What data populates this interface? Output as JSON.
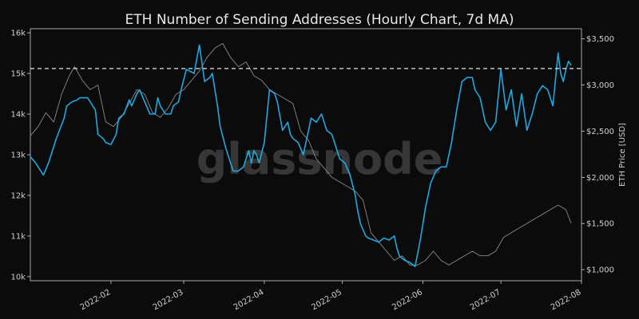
{
  "chart_data": {
    "type": "line",
    "title": "ETH Number of Sending Addresses (Hourly Chart, 7d MA)",
    "watermark": "glassnode",
    "xlabel": "",
    "ylabel": "",
    "y2label": "ETH Price [USD]",
    "x_ticks": [
      "2022-02",
      "2022-03",
      "2022-04",
      "2022-05",
      "2022-06",
      "2022-07",
      "2022-08"
    ],
    "x_tick_days": [
      31,
      59,
      90,
      120,
      151,
      181,
      212
    ],
    "xlim_days": [
      0,
      212
    ],
    "y_ticks": [
      "10k",
      "11k",
      "12k",
      "13k",
      "14k",
      "15k",
      "16k"
    ],
    "y_tick_values": [
      10000,
      11000,
      12000,
      13000,
      14000,
      15000,
      16000
    ],
    "ylim": [
      9900,
      16100
    ],
    "y2_ticks": [
      "$1,000",
      "$1,500",
      "$2,000",
      "$2,500",
      "$3,000",
      "$3,500"
    ],
    "y2_tick_values": [
      1000,
      1500,
      2000,
      2500,
      3000,
      3500
    ],
    "y2lim": [
      880,
      3610
    ],
    "reference_line": 15120,
    "colors": {
      "addresses": "#1fa8e0",
      "price": "#8a8a8a",
      "reference": "#ffffff"
    },
    "series": [
      {
        "axis": "left",
        "days": [
          0,
          2,
          3,
          5,
          7,
          10,
          13,
          14,
          16,
          18,
          19,
          22,
          23,
          25,
          26,
          28,
          29,
          31,
          33,
          34,
          36,
          38,
          39,
          41,
          42,
          44,
          46,
          48,
          49,
          50,
          52,
          54,
          55,
          57,
          58,
          60,
          63,
          65,
          67,
          69,
          70,
          72,
          73,
          75,
          77,
          78,
          80,
          82,
          84,
          85,
          86,
          87,
          88,
          90,
          92,
          94,
          95,
          97,
          99,
          100,
          101,
          103,
          105,
          107,
          108,
          110,
          112,
          114,
          116,
          117,
          119,
          121,
          123,
          125,
          126,
          127,
          129,
          130,
          132,
          134,
          136,
          138,
          140,
          141,
          142,
          144,
          146,
          148,
          150,
          152,
          154,
          156,
          158,
          160,
          162,
          164,
          166,
          168,
          170,
          171,
          173,
          175,
          177,
          179,
          181,
          183,
          185,
          187,
          189,
          191,
          193,
          195,
          197,
          199,
          201,
          203,
          204,
          205,
          206,
          207,
          208
        ],
        "values": [
          12950,
          12800,
          12700,
          12500,
          12800,
          13400,
          13900,
          14200,
          14300,
          14350,
          14400,
          14400,
          14300,
          14100,
          13500,
          13400,
          13300,
          13250,
          13500,
          13900,
          14000,
          14350,
          14200,
          14500,
          14600,
          14300,
          14000,
          14000,
          14400,
          14200,
          14000,
          14000,
          14200,
          14300,
          14600,
          15100,
          15000,
          15700,
          14800,
          14900,
          15000,
          14200,
          13700,
          13200,
          12800,
          12600,
          12600,
          12700,
          13100,
          12800,
          13100,
          13000,
          12800,
          13300,
          14600,
          14500,
          14300,
          13600,
          13800,
          13500,
          13400,
          13300,
          13000,
          13600,
          13900,
          13800,
          14000,
          13600,
          13500,
          13300,
          12900,
          12800,
          12500,
          12000,
          11600,
          11300,
          11000,
          10950,
          10900,
          10850,
          10950,
          10900,
          11000,
          10700,
          10500,
          10400,
          10350,
          10250,
          10900,
          11700,
          12300,
          12600,
          12700,
          12700,
          13300,
          14100,
          14800,
          14900,
          14900,
          14600,
          14400,
          13800,
          13600,
          13800,
          15100,
          14100,
          14600,
          13700,
          14500,
          13600,
          14000,
          14500,
          14700,
          14600,
          14200,
          15500,
          15000,
          14800,
          15100,
          15300,
          15200
        ],
        "_note": "indexes beyond array length ignored"
      },
      {
        "axis": "right",
        "days": [
          0,
          3,
          6,
          9,
          12,
          15,
          17,
          20,
          23,
          26,
          29,
          32,
          35,
          38,
          41,
          44,
          47,
          50,
          53,
          56,
          59,
          62,
          65,
          68,
          71,
          74,
          77,
          80,
          83,
          86,
          89,
          92,
          95,
          98,
          101,
          104,
          107,
          110,
          113,
          116,
          119,
          122,
          125,
          128,
          131,
          134,
          137,
          140,
          143,
          146,
          149,
          152,
          155,
          158,
          161,
          164,
          167,
          170,
          173,
          176,
          179,
          182,
          185,
          188,
          191,
          194,
          197,
          200,
          203,
          206,
          208
        ],
        "values": [
          2450,
          2550,
          2700,
          2600,
          2900,
          3100,
          3200,
          3050,
          2950,
          3000,
          2600,
          2550,
          2650,
          2800,
          2950,
          2900,
          2700,
          2650,
          2750,
          2900,
          2950,
          3050,
          3150,
          3300,
          3400,
          3450,
          3300,
          3200,
          3250,
          3100,
          3050,
          2950,
          2900,
          2850,
          2800,
          2500,
          2400,
          2200,
          2100,
          2000,
          1950,
          1900,
          1850,
          1750,
          1400,
          1300,
          1200,
          1100,
          1150,
          1050,
          1050,
          1100,
          1200,
          1100,
          1050,
          1100,
          1150,
          1200,
          1150,
          1150,
          1200,
          1350,
          1400,
          1450,
          1500,
          1550,
          1600,
          1650,
          1700,
          1650,
          1500
        ]
      }
    ]
  }
}
